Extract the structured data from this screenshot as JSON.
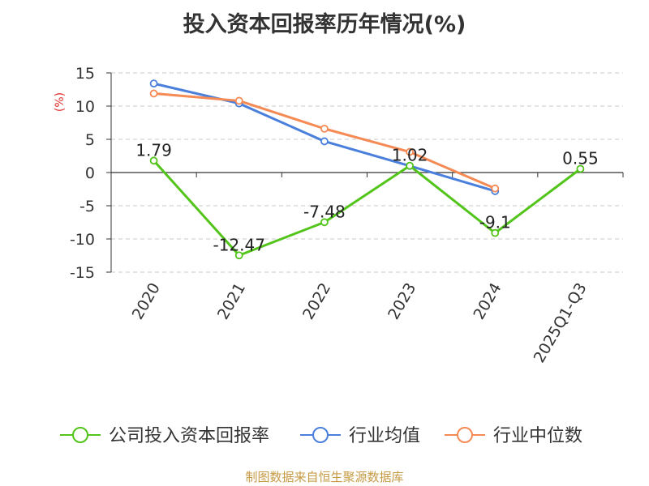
{
  "title": "投入资本回报率历年情况(%)",
  "source": "制图数据来自恒生聚源数据库",
  "chart_data": {
    "type": "line",
    "title": "投入资本回报率历年情况(%)",
    "ylabel": "(%)",
    "ylim": [
      -15,
      15
    ],
    "yticks": [
      15,
      10,
      5,
      0,
      -5,
      -10,
      -15
    ],
    "grid": true,
    "legend_position": "bottom",
    "categories": [
      "2020",
      "2021",
      "2022",
      "2023",
      "2024",
      "2025Q1-Q3"
    ],
    "series": [
      {
        "name": "公司投入资本回报率",
        "color": "#52c41a",
        "values": [
          1.79,
          -12.47,
          -7.48,
          1.02,
          -9.1,
          0.55
        ],
        "labels": [
          "1.79",
          "-12.47",
          "-7.48",
          "1.02",
          "-9.1",
          "0.55"
        ]
      },
      {
        "name": "行业均值",
        "color": "#4a7fdb",
        "values": [
          13.4,
          10.4,
          4.7,
          1.0,
          -2.8,
          null
        ]
      },
      {
        "name": "行业中位数",
        "color": "#f58a55",
        "values": [
          11.9,
          10.8,
          6.6,
          3.1,
          -2.4,
          null
        ]
      }
    ]
  }
}
